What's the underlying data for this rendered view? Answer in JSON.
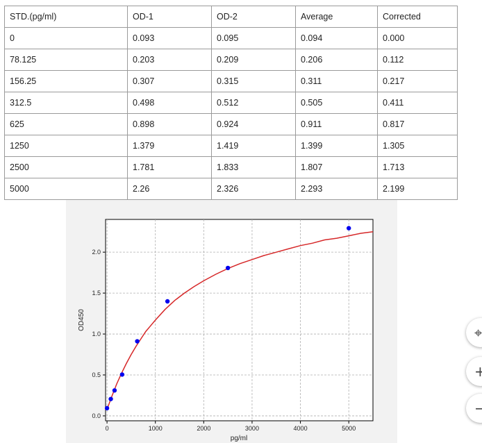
{
  "table": {
    "headers": [
      "STD.(pg/ml)",
      "OD-1",
      "OD-2",
      "Average",
      "Corrected"
    ],
    "rows": [
      [
        "0",
        "0.093",
        "0.095",
        "0.094",
        "0.000"
      ],
      [
        "78.125",
        "0.203",
        "0.209",
        "0.206",
        "0.112"
      ],
      [
        "156.25",
        "0.307",
        "0.315",
        "0.311",
        "0.217"
      ],
      [
        "312.5",
        "0.498",
        "0.512",
        "0.505",
        "0.411"
      ],
      [
        "625",
        "0.898",
        "0.924",
        "0.911",
        "0.817"
      ],
      [
        "1250",
        "1.379",
        "1.419",
        "1.399",
        "1.305"
      ],
      [
        "2500",
        "1.781",
        "1.833",
        "1.807",
        "1.713"
      ],
      [
        "5000",
        "2.26",
        "2.326",
        "2.293",
        "2.199"
      ]
    ]
  },
  "chart_data": {
    "type": "scatter",
    "xlabel": "pg/ml",
    "ylabel": "OD450",
    "xlim": [
      -30,
      5500
    ],
    "ylim": [
      -0.06,
      2.4
    ],
    "x_ticks": [
      "0",
      "1000",
      "2000",
      "3000",
      "4000",
      "5000"
    ],
    "y_ticks": [
      "0.0",
      "0.5",
      "1.0",
      "1.5",
      "2.0"
    ],
    "grid": true,
    "points": {
      "x": [
        0,
        78.125,
        156.25,
        312.5,
        625,
        1250,
        2500,
        5000
      ],
      "y": [
        0.094,
        0.206,
        0.311,
        0.505,
        0.911,
        1.399,
        1.807,
        2.293
      ]
    },
    "fit_curve": {
      "x": [
        0,
        100,
        200,
        300,
        400,
        500,
        600,
        700,
        800,
        900,
        1000,
        1200,
        1400,
        1600,
        1800,
        2000,
        2250,
        2500,
        2750,
        3000,
        3250,
        3500,
        3750,
        4000,
        4250,
        4500,
        4750,
        5000,
        5250,
        5500
      ],
      "y": [
        0.08,
        0.24,
        0.39,
        0.52,
        0.64,
        0.75,
        0.85,
        0.94,
        1.03,
        1.1,
        1.17,
        1.3,
        1.41,
        1.5,
        1.58,
        1.65,
        1.73,
        1.8,
        1.86,
        1.91,
        1.96,
        2.0,
        2.04,
        2.08,
        2.11,
        2.15,
        2.17,
        2.2,
        2.23,
        2.25
      ]
    },
    "point_color": "#0000ee",
    "curve_color": "#d62728"
  },
  "controls": {
    "icons": [
      "crosshair-icon",
      "plus-icon",
      "minus-icon"
    ],
    "glyphs": [
      "⌖",
      "+",
      "−"
    ]
  }
}
